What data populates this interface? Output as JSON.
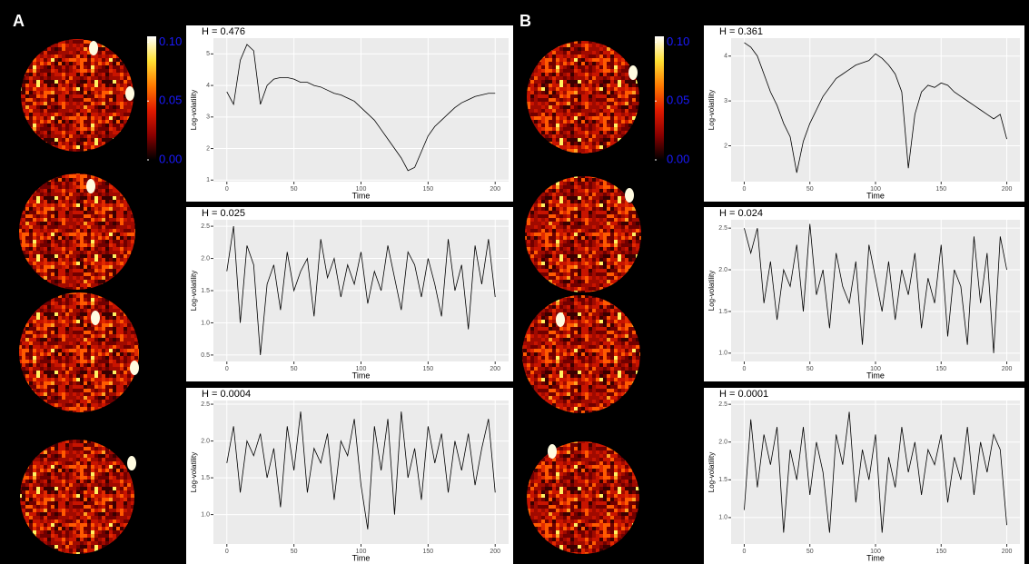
{
  "panel_labels": [
    "A",
    "B"
  ],
  "chart_data": [
    {
      "type": "colorbar",
      "colors": [
        "#000000",
        "#8b0000",
        "#e01a00",
        "#ff7a00",
        "#ffe033",
        "#ffffff"
      ],
      "ylim": [
        0,
        0.105
      ],
      "yticks": [
        {
          "value": 0,
          "label": "0.00"
        },
        {
          "value": 0.05,
          "label": "0.05"
        },
        {
          "value": 0.1,
          "label": "0.10"
        }
      ]
    },
    {
      "type": "line",
      "title": "H = 0.476",
      "xlabel": "Time",
      "ylabel": "Log-volatility",
      "color": "#000000",
      "grid": true,
      "xlim": [
        -10,
        210
      ],
      "xticks": [
        0,
        50,
        100,
        150,
        200
      ],
      "ylim": [
        0.95,
        5.5
      ],
      "yticks": [
        1,
        2,
        3,
        4,
        5
      ],
      "x": [
        0,
        5,
        10,
        15,
        20,
        25,
        30,
        35,
        40,
        45,
        50,
        55,
        60,
        65,
        70,
        75,
        80,
        85,
        90,
        95,
        100,
        105,
        110,
        115,
        120,
        125,
        130,
        135,
        140,
        145,
        150,
        155,
        160,
        165,
        170,
        175,
        180,
        185,
        190,
        195,
        200
      ],
      "values": [
        3.8,
        3.4,
        4.8,
        5.3,
        5.1,
        3.4,
        4.0,
        4.2,
        4.25,
        4.25,
        4.2,
        4.1,
        4.1,
        4.0,
        3.95,
        3.85,
        3.75,
        3.7,
        3.6,
        3.5,
        3.3,
        3.1,
        2.9,
        2.6,
        2.3,
        2.0,
        1.7,
        1.3,
        1.4,
        1.9,
        2.4,
        2.7,
        2.9,
        3.1,
        3.3,
        3.45,
        3.55,
        3.65,
        3.7,
        3.75,
        3.75
      ]
    },
    {
      "type": "line",
      "title": "H = 0.025",
      "xlabel": "Time",
      "ylabel": "Log-volatility",
      "color": "#000000",
      "grid": true,
      "xlim": [
        -10,
        210
      ],
      "xticks": [
        0,
        50,
        100,
        150,
        200
      ],
      "ylim": [
        0.4,
        2.6
      ],
      "yticks": [
        0.5,
        {
          "value": 1,
          "label": "1.0"
        },
        1.5,
        {
          "value": 2,
          "label": "2.0"
        },
        2.5
      ],
      "x": [
        0,
        5,
        10,
        15,
        20,
        25,
        30,
        35,
        40,
        45,
        50,
        55,
        60,
        65,
        70,
        75,
        80,
        85,
        90,
        95,
        100,
        105,
        110,
        115,
        120,
        125,
        130,
        135,
        140,
        145,
        150,
        155,
        160,
        165,
        170,
        175,
        180,
        185,
        190,
        195,
        200
      ],
      "values": [
        1.8,
        2.5,
        1.0,
        2.2,
        1.9,
        0.5,
        1.6,
        1.9,
        1.2,
        2.1,
        1.5,
        1.8,
        2.0,
        1.1,
        2.3,
        1.7,
        2.0,
        1.4,
        1.9,
        1.6,
        2.1,
        1.3,
        1.8,
        1.5,
        2.2,
        1.7,
        1.2,
        2.1,
        1.9,
        1.4,
        2.0,
        1.6,
        1.1,
        2.3,
        1.5,
        1.9,
        0.9,
        2.2,
        1.6,
        2.3,
        1.4
      ]
    },
    {
      "type": "line",
      "title": "H = 0.0004",
      "xlabel": "Time",
      "ylabel": "Log-volatility",
      "color": "#000000",
      "grid": true,
      "xlim": [
        -10,
        210
      ],
      "xticks": [
        0,
        50,
        100,
        150,
        200
      ],
      "ylim": [
        0.6,
        2.55
      ],
      "yticks": [
        {
          "value": 1,
          "label": "1.0"
        },
        1.5,
        {
          "value": 2,
          "label": "2.0"
        },
        2.5
      ],
      "x": [
        0,
        5,
        10,
        15,
        20,
        25,
        30,
        35,
        40,
        45,
        50,
        55,
        60,
        65,
        70,
        75,
        80,
        85,
        90,
        95,
        100,
        105,
        110,
        115,
        120,
        125,
        130,
        135,
        140,
        145,
        150,
        155,
        160,
        165,
        170,
        175,
        180,
        185,
        190,
        195,
        200
      ],
      "values": [
        1.7,
        2.2,
        1.3,
        2.0,
        1.8,
        2.1,
        1.5,
        1.9,
        1.1,
        2.2,
        1.6,
        2.4,
        1.3,
        1.9,
        1.7,
        2.1,
        1.2,
        2.0,
        1.8,
        2.3,
        1.4,
        0.8,
        2.2,
        1.6,
        2.3,
        1.0,
        2.4,
        1.5,
        1.9,
        1.2,
        2.2,
        1.7,
        2.1,
        1.3,
        2.0,
        1.6,
        2.1,
        1.4,
        1.9,
        2.3,
        1.3
      ]
    },
    {
      "type": "colorbar",
      "colors": [
        "#000000",
        "#8b0000",
        "#e01a00",
        "#ff7a00",
        "#ffe033",
        "#ffffff"
      ],
      "ylim": [
        0,
        0.105
      ],
      "yticks": [
        {
          "value": 0,
          "label": "0.00"
        },
        {
          "value": 0.05,
          "label": "0.05"
        },
        {
          "value": 0.1,
          "label": "0.10"
        }
      ]
    },
    {
      "type": "line",
      "title": "H = 0.361",
      "xlabel": "Time",
      "ylabel": "Log-volatility",
      "color": "#000000",
      "grid": true,
      "xlim": [
        -10,
        210
      ],
      "xticks": [
        0,
        50,
        100,
        150,
        200
      ],
      "ylim": [
        1.2,
        4.4
      ],
      "yticks": [
        2,
        3,
        4
      ],
      "x": [
        0,
        5,
        10,
        15,
        20,
        25,
        30,
        35,
        40,
        45,
        50,
        55,
        60,
        65,
        70,
        75,
        80,
        85,
        90,
        95,
        100,
        105,
        110,
        115,
        120,
        125,
        130,
        135,
        140,
        145,
        150,
        155,
        160,
        165,
        170,
        175,
        180,
        185,
        190,
        195,
        200
      ],
      "values": [
        4.3,
        4.2,
        4.0,
        3.6,
        3.2,
        2.9,
        2.5,
        2.2,
        1.4,
        2.1,
        2.5,
        2.8,
        3.1,
        3.3,
        3.5,
        3.6,
        3.7,
        3.8,
        3.85,
        3.9,
        4.05,
        3.95,
        3.8,
        3.6,
        3.2,
        1.5,
        2.7,
        3.2,
        3.35,
        3.3,
        3.4,
        3.35,
        3.2,
        3.1,
        3.0,
        2.9,
        2.8,
        2.7,
        2.6,
        2.7,
        2.15
      ]
    },
    {
      "type": "line",
      "title": "H = 0.024",
      "xlabel": "Time",
      "ylabel": "Log-volatility",
      "color": "#000000",
      "grid": true,
      "xlim": [
        -10,
        210
      ],
      "xticks": [
        0,
        50,
        100,
        150,
        200
      ],
      "ylim": [
        0.9,
        2.6
      ],
      "yticks": [
        {
          "value": 1,
          "label": "1.0"
        },
        1.5,
        {
          "value": 2,
          "label": "2.0"
        },
        2.5
      ],
      "x": [
        0,
        5,
        10,
        15,
        20,
        25,
        30,
        35,
        40,
        45,
        50,
        55,
        60,
        65,
        70,
        75,
        80,
        85,
        90,
        95,
        100,
        105,
        110,
        115,
        120,
        125,
        130,
        135,
        140,
        145,
        150,
        155,
        160,
        165,
        170,
        175,
        180,
        185,
        190,
        195,
        200
      ],
      "values": [
        2.5,
        2.2,
        2.5,
        1.6,
        2.1,
        1.4,
        2.0,
        1.8,
        2.3,
        1.5,
        2.55,
        1.7,
        2.0,
        1.3,
        2.2,
        1.8,
        1.6,
        2.1,
        1.1,
        2.3,
        1.9,
        1.5,
        2.1,
        1.4,
        2.0,
        1.7,
        2.2,
        1.3,
        1.9,
        1.6,
        2.3,
        1.2,
        2.0,
        1.8,
        1.1,
        2.4,
        1.6,
        2.2,
        1.0,
        2.4,
        2.0
      ]
    },
    {
      "type": "line",
      "title": "H = 0.0001",
      "xlabel": "Time",
      "ylabel": "Log-volatility",
      "color": "#000000",
      "grid": true,
      "xlim": [
        -10,
        210
      ],
      "xticks": [
        0,
        50,
        100,
        150,
        200
      ],
      "ylim": [
        0.65,
        2.55
      ],
      "yticks": [
        {
          "value": 1,
          "label": "1.0"
        },
        1.5,
        {
          "value": 2,
          "label": "2.0"
        },
        2.5
      ],
      "x": [
        0,
        5,
        10,
        15,
        20,
        25,
        30,
        35,
        40,
        45,
        50,
        55,
        60,
        65,
        70,
        75,
        80,
        85,
        90,
        95,
        100,
        105,
        110,
        115,
        120,
        125,
        130,
        135,
        140,
        145,
        150,
        155,
        160,
        165,
        170,
        175,
        180,
        185,
        190,
        195,
        200
      ],
      "values": [
        1.1,
        2.3,
        1.4,
        2.1,
        1.7,
        2.2,
        0.8,
        1.9,
        1.5,
        2.2,
        1.3,
        2.0,
        1.6,
        0.8,
        2.1,
        1.7,
        2.4,
        1.2,
        1.9,
        1.5,
        2.1,
        0.8,
        1.8,
        1.4,
        2.2,
        1.6,
        2.0,
        1.3,
        1.9,
        1.7,
        2.1,
        1.2,
        1.8,
        1.5,
        2.2,
        1.3,
        2.0,
        1.6,
        2.1,
        1.9,
        0.9
      ]
    }
  ]
}
